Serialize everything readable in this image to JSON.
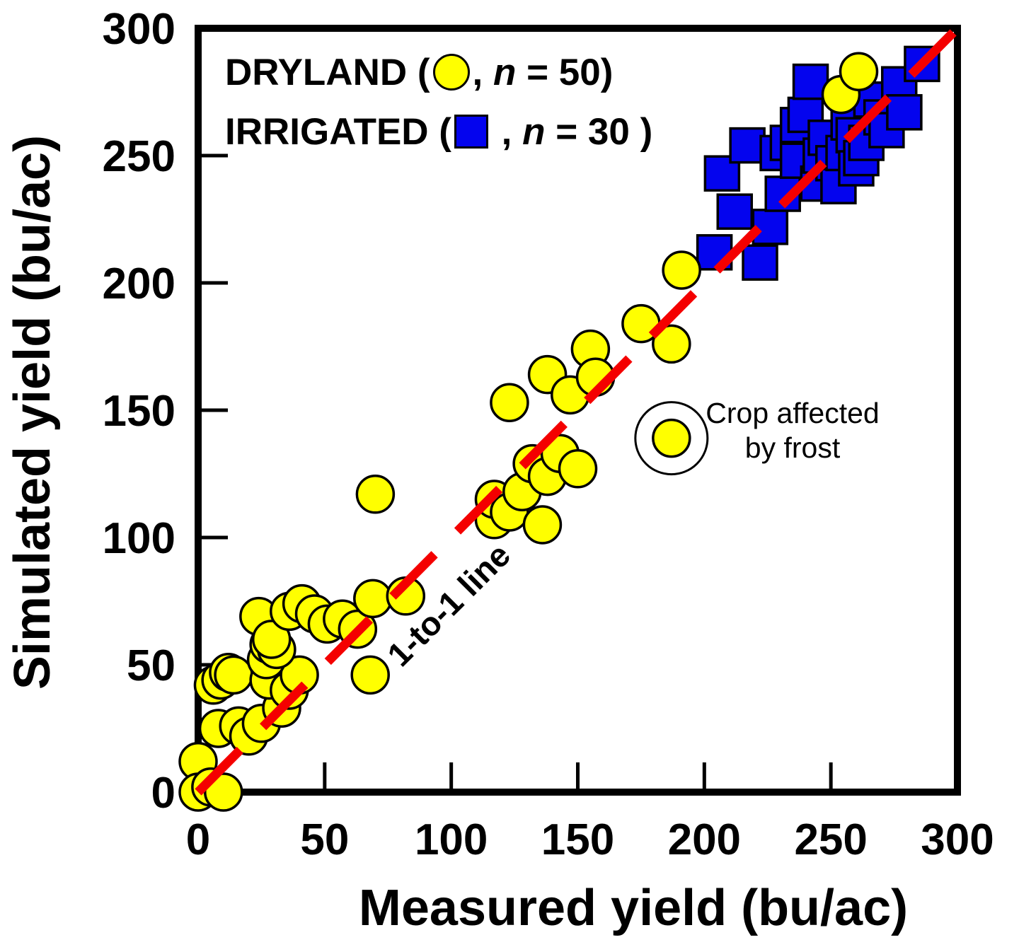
{
  "chart_data": {
    "type": "scatter",
    "xlabel": "Measured yield (bu/ac)",
    "ylabel": "Simulated yield (bu/ac)",
    "xlim": [
      0,
      300
    ],
    "ylim": [
      0,
      300
    ],
    "xticks": [
      0,
      50,
      100,
      150,
      200,
      250,
      300
    ],
    "yticks": [
      0,
      50,
      100,
      150,
      200,
      250,
      300
    ],
    "grid": false,
    "legend_position": "inside-top-left",
    "series": [
      {
        "name": "DRYLAND",
        "n": 50,
        "marker": "circle",
        "color": "#ffff00",
        "outline": "#000000",
        "points": [
          [
            0,
            12
          ],
          [
            0,
            0
          ],
          [
            5,
            2
          ],
          [
            10,
            0
          ],
          [
            8,
            25
          ],
          [
            16,
            26
          ],
          [
            20,
            22
          ],
          [
            25,
            27
          ],
          [
            33,
            33
          ],
          [
            6,
            42
          ],
          [
            9,
            44
          ],
          [
            12,
            47
          ],
          [
            14,
            46
          ],
          [
            28,
            44
          ],
          [
            36,
            40
          ],
          [
            40,
            46
          ],
          [
            68,
            46
          ],
          [
            27,
            52
          ],
          [
            28,
            58
          ],
          [
            31,
            56
          ],
          [
            24,
            69
          ],
          [
            29,
            60
          ],
          [
            36,
            71
          ],
          [
            41,
            74
          ],
          [
            46,
            70
          ],
          [
            51,
            66
          ],
          [
            57,
            68
          ],
          [
            63,
            64
          ],
          [
            69,
            76
          ],
          [
            82,
            77
          ],
          [
            70,
            117
          ],
          [
            117,
            107
          ],
          [
            117,
            115
          ],
          [
            123,
            110
          ],
          [
            136,
            105
          ],
          [
            128,
            118
          ],
          [
            132,
            129
          ],
          [
            138,
            124
          ],
          [
            143,
            133
          ],
          [
            150,
            127
          ],
          [
            123,
            153
          ],
          [
            138,
            164
          ],
          [
            147,
            156
          ],
          [
            155,
            174
          ],
          [
            157,
            163
          ],
          [
            175,
            184
          ],
          [
            187,
            176
          ],
          [
            191,
            205
          ],
          [
            254,
            274
          ],
          [
            261,
            283
          ]
        ]
      },
      {
        "name": "IRRIGATED",
        "n": 30,
        "marker": "square",
        "color": "#0404ee",
        "outline": "#000000",
        "points": [
          [
            204,
            212
          ],
          [
            222,
            208
          ],
          [
            212,
            228
          ],
          [
            226,
            222
          ],
          [
            207,
            243
          ],
          [
            217,
            254
          ],
          [
            229,
            251
          ],
          [
            231,
            235
          ],
          [
            233,
            255
          ],
          [
            237,
            248
          ],
          [
            237,
            262
          ],
          [
            240,
            266
          ],
          [
            242,
            279
          ],
          [
            245,
            239
          ],
          [
            246,
            250
          ],
          [
            248,
            257
          ],
          [
            251,
            247
          ],
          [
            253,
            238
          ],
          [
            255,
            251
          ],
          [
            257,
            263
          ],
          [
            259,
            258
          ],
          [
            260,
            245
          ],
          [
            262,
            249
          ],
          [
            264,
            255
          ],
          [
            266,
            272
          ],
          [
            270,
            265
          ],
          [
            272,
            260
          ],
          [
            277,
            278
          ],
          [
            279,
            267
          ],
          [
            286,
            286
          ]
        ]
      }
    ],
    "reference_line": {
      "label": "1-to-1 line",
      "from": [
        0,
        0
      ],
      "to": [
        300,
        300
      ],
      "color": "#f40000",
      "style": "dashed"
    },
    "annotation": {
      "line1": "Crop affected",
      "line2": "by frost",
      "marker_at": [
        187,
        139
      ],
      "marker_color": "#ffff00"
    }
  },
  "legend": {
    "items": [
      {
        "before": "DRYLAND (",
        "between": ", ",
        "n_symbol": "n",
        "after": " = 50)"
      },
      {
        "before": "IRRIGATED (",
        "between": " , ",
        "n_symbol": "n",
        "after": " = 30 )"
      }
    ]
  }
}
